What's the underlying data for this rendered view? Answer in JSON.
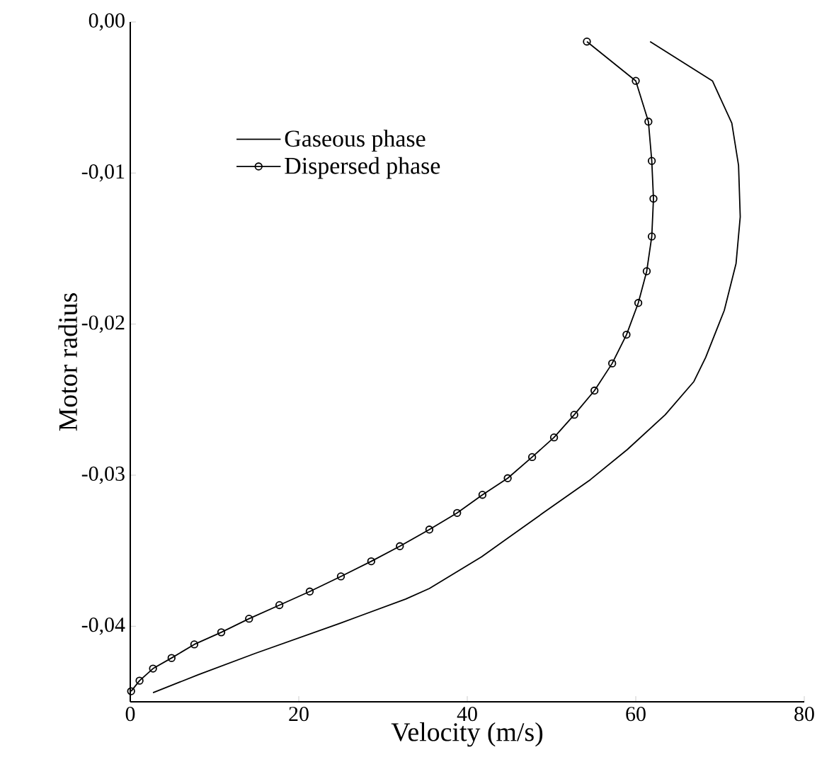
{
  "chart_data": {
    "type": "line",
    "xlabel": "Velocity (m/s)",
    "ylabel": "Motor radius",
    "xlim": [
      0,
      80
    ],
    "ylim": [
      -0.045,
      0
    ],
    "xticks": [
      0,
      20,
      40,
      60,
      80
    ],
    "yticks": [
      {
        "value": 0,
        "label": "0,00"
      },
      {
        "value": -0.01,
        "label": "-0,01"
      },
      {
        "value": -0.02,
        "label": "-0,02"
      },
      {
        "value": -0.03,
        "label": "-0,03"
      },
      {
        "value": -0.04,
        "label": "-0,04"
      }
    ],
    "grid": false,
    "legend": "top left",
    "series": [
      {
        "name": "Gaseous phase",
        "color": "#000000",
        "marker": "none",
        "x": [
          61.7,
          69.1,
          71.4,
          72.2,
          72.4,
          71.9,
          70.5,
          68.3,
          66.9,
          63.5,
          59.0,
          54.6,
          49.0,
          41.7,
          35.5,
          32.7,
          24.9,
          14.8,
          8.1,
          2.7
        ],
        "values": [
          -0.0013,
          -0.0039,
          -0.0067,
          -0.0095,
          -0.0129,
          -0.016,
          -0.0191,
          -0.0222,
          -0.0238,
          -0.026,
          -0.0283,
          -0.0303,
          -0.0325,
          -0.0354,
          -0.0375,
          -0.0382,
          -0.0398,
          -0.0418,
          -0.0432,
          -0.0444
        ]
      },
      {
        "name": "Dispersed phase",
        "color": "#000000",
        "marker": "circle",
        "x": [
          54.2,
          60.0,
          61.5,
          61.9,
          62.1,
          61.9,
          61.3,
          60.3,
          58.9,
          57.2,
          55.1,
          52.7,
          50.3,
          47.7,
          44.8,
          41.8,
          38.8,
          35.5,
          32.0,
          28.6,
          25.0,
          21.3,
          17.7,
          14.1,
          10.8,
          7.6,
          4.9,
          2.7,
          1.1,
          0.1
        ],
        "values": [
          -0.0013,
          -0.0039,
          -0.0066,
          -0.0092,
          -0.0117,
          -0.0142,
          -0.0165,
          -0.0186,
          -0.0207,
          -0.0226,
          -0.0244,
          -0.026,
          -0.0275,
          -0.0288,
          -0.0302,
          -0.0313,
          -0.0325,
          -0.0336,
          -0.0347,
          -0.0357,
          -0.0367,
          -0.0377,
          -0.0386,
          -0.0395,
          -0.0404,
          -0.0412,
          -0.0421,
          -0.0428,
          -0.0436,
          -0.0443
        ]
      }
    ]
  }
}
